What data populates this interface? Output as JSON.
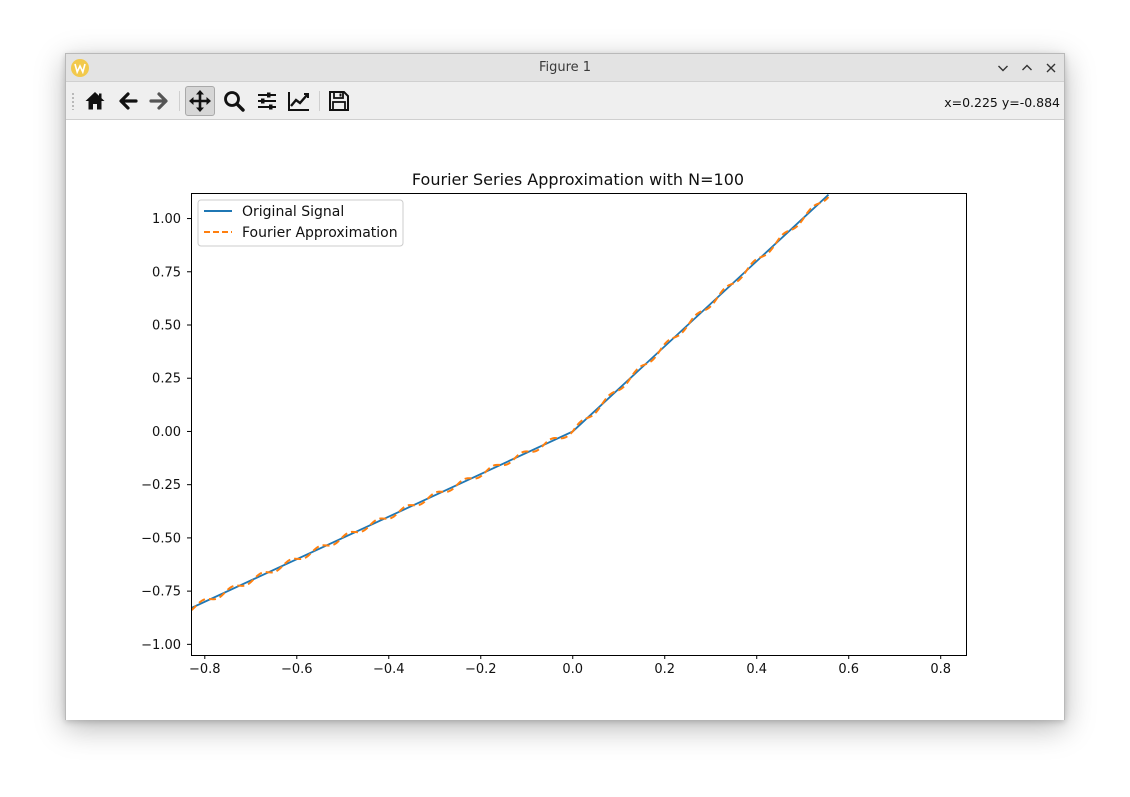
{
  "window": {
    "title": "Figure 1"
  },
  "toolbar": {
    "buttons": [
      {
        "name": "home",
        "icon": "home-icon"
      },
      {
        "name": "back",
        "icon": "arrow-left-icon"
      },
      {
        "name": "forward",
        "icon": "arrow-right-icon"
      },
      {
        "name": "pan",
        "icon": "move-icon",
        "active": true
      },
      {
        "name": "zoom",
        "icon": "magnifier-icon"
      },
      {
        "name": "subplots",
        "icon": "sliders-icon"
      },
      {
        "name": "customize",
        "icon": "line-chart-icon"
      },
      {
        "name": "save",
        "icon": "floppy-disk-icon"
      }
    ],
    "coords": "x=0.225 y=-0.884"
  },
  "chart_data": {
    "type": "line",
    "title": "Fourier Series Approximation with N=100",
    "xlabel": "",
    "ylabel": "",
    "xlim": [
      -0.83,
      0.855
    ],
    "ylim": [
      -1.05,
      1.12
    ],
    "xticks": [
      "−0.8",
      "−0.6",
      "−0.4",
      "−0.2",
      "0.0",
      "0.2",
      "0.4",
      "0.6",
      "0.8"
    ],
    "yticks": [
      "−1.00",
      "−0.75",
      "−0.50",
      "−0.25",
      "0.00",
      "0.25",
      "0.50",
      "0.75",
      "1.00"
    ],
    "legend_position": "top-left",
    "grid": false,
    "series": [
      {
        "name": "Original Signal",
        "color": "#1f77b4",
        "style": "solid",
        "x": [
          -0.83,
          0.0,
          0.556
        ],
        "y": [
          -0.83,
          0.0,
          1.112
        ]
      },
      {
        "name": "Fourier Approximation",
        "color": "#ff7f0e",
        "style": "dashed",
        "x": [
          -0.83,
          0.556
        ],
        "y": [
          -0.83,
          1.112
        ],
        "ripple_amplitude": 0.012,
        "ripple_period": 0.063
      }
    ]
  },
  "colors": {
    "titlebar": "#e3e3e3",
    "toolbar": "#efefef",
    "original": "#1f77b4",
    "fourier": "#ff7f0e"
  }
}
